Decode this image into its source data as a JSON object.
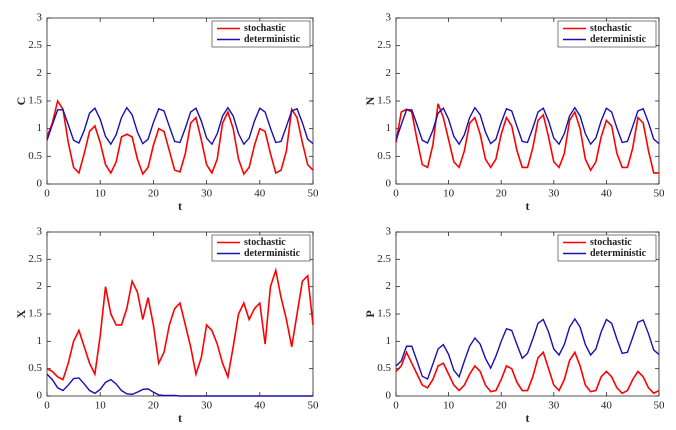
{
  "chart_data": [
    {
      "type": "line",
      "ylabel": "C",
      "xlabel": "t",
      "xlim": [
        0,
        50
      ],
      "ylim": [
        0,
        3
      ],
      "xticks": [
        0,
        10,
        20,
        30,
        40,
        50
      ],
      "yticks": [
        0,
        0.5,
        1,
        1.5,
        2,
        2.5,
        3
      ],
      "legend": "top-right",
      "x": [
        0,
        1,
        2,
        3,
        4,
        5,
        6,
        7,
        8,
        9,
        10,
        11,
        12,
        13,
        14,
        15,
        16,
        17,
        18,
        19,
        20,
        21,
        22,
        23,
        24,
        25,
        26,
        27,
        28,
        29,
        30,
        31,
        32,
        33,
        34,
        35,
        36,
        37,
        38,
        39,
        40,
        41,
        42,
        43,
        44,
        45,
        46,
        47,
        48,
        49,
        50
      ],
      "series": [
        {
          "name": "stochastic",
          "color": "#ff0000",
          "values": [
            0.85,
            1.1,
            1.5,
            1.35,
            0.75,
            0.3,
            0.2,
            0.55,
            0.95,
            1.05,
            0.75,
            0.35,
            0.2,
            0.4,
            0.85,
            0.9,
            0.85,
            0.45,
            0.18,
            0.3,
            0.7,
            1.0,
            0.95,
            0.6,
            0.25,
            0.22,
            0.55,
            1.1,
            1.2,
            0.8,
            0.35,
            0.2,
            0.45,
            1.1,
            1.3,
            1.0,
            0.45,
            0.18,
            0.3,
            0.7,
            1.0,
            0.95,
            0.55,
            0.2,
            0.25,
            0.6,
            1.35,
            1.2,
            0.75,
            0.35,
            0.25
          ]
        },
        {
          "name": "deterministic",
          "color": "#1a0fb0",
          "values": [
            0.79,
            1.07,
            1.34,
            1.34,
            1.07,
            0.79,
            0.74,
            0.97,
            1.28,
            1.37,
            1.17,
            0.86,
            0.72,
            0.89,
            1.2,
            1.38,
            1.25,
            0.94,
            0.73,
            0.81,
            1.11,
            1.36,
            1.32,
            1.04,
            0.77,
            0.75,
            1.01,
            1.3,
            1.37,
            1.14,
            0.83,
            0.72,
            0.91,
            1.23,
            1.38,
            1.23,
            0.91,
            0.72,
            0.83,
            1.14,
            1.37,
            1.3,
            1.01,
            0.75,
            0.77,
            1.04,
            1.32,
            1.36,
            1.11,
            0.81,
            0.73
          ]
        }
      ]
    },
    {
      "type": "line",
      "ylabel": "N",
      "xlabel": "t",
      "xlim": [
        0,
        50
      ],
      "ylim": [
        0,
        3
      ],
      "xticks": [
        0,
        10,
        20,
        30,
        40,
        50
      ],
      "yticks": [
        0,
        0.5,
        1,
        1.5,
        2,
        2.5,
        3
      ],
      "legend": "top-right",
      "x": [
        0,
        1,
        2,
        3,
        4,
        5,
        6,
        7,
        8,
        9,
        10,
        11,
        12,
        13,
        14,
        15,
        16,
        17,
        18,
        19,
        20,
        21,
        22,
        23,
        24,
        25,
        26,
        27,
        28,
        29,
        30,
        31,
        32,
        33,
        34,
        35,
        36,
        37,
        38,
        39,
        40,
        41,
        42,
        43,
        44,
        45,
        46,
        47,
        48,
        49,
        50
      ],
      "series": [
        {
          "name": "stochastic",
          "color": "#ff0000",
          "values": [
            0.75,
            1.3,
            1.35,
            1.3,
            0.8,
            0.35,
            0.3,
            0.7,
            1.45,
            1.2,
            0.8,
            0.4,
            0.3,
            0.6,
            1.1,
            1.2,
            0.9,
            0.45,
            0.3,
            0.45,
            0.9,
            1.2,
            1.05,
            0.6,
            0.3,
            0.3,
            0.65,
            1.15,
            1.25,
            0.85,
            0.4,
            0.3,
            0.55,
            1.15,
            1.3,
            1.0,
            0.45,
            0.25,
            0.4,
            0.85,
            1.15,
            1.05,
            0.55,
            0.3,
            0.3,
            0.65,
            1.2,
            1.1,
            0.6,
            0.2,
            0.2
          ]
        },
        {
          "name": "deterministic",
          "color": "#1a0fb0",
          "values": [
            0.79,
            1.07,
            1.34,
            1.34,
            1.07,
            0.79,
            0.74,
            0.97,
            1.28,
            1.37,
            1.17,
            0.86,
            0.72,
            0.89,
            1.2,
            1.38,
            1.25,
            0.94,
            0.73,
            0.81,
            1.11,
            1.36,
            1.32,
            1.04,
            0.77,
            0.75,
            1.01,
            1.3,
            1.37,
            1.14,
            0.83,
            0.72,
            0.91,
            1.23,
            1.38,
            1.23,
            0.91,
            0.72,
            0.83,
            1.14,
            1.37,
            1.3,
            1.01,
            0.75,
            0.77,
            1.04,
            1.32,
            1.36,
            1.11,
            0.81,
            0.73
          ]
        }
      ]
    },
    {
      "type": "line",
      "ylabel": "X",
      "xlabel": "t",
      "xlim": [
        0,
        50
      ],
      "ylim": [
        0,
        3
      ],
      "xticks": [
        0,
        10,
        20,
        30,
        40,
        50
      ],
      "yticks": [
        0,
        0.5,
        1,
        1.5,
        2,
        2.5,
        3
      ],
      "legend": "top-right",
      "x": [
        0,
        1,
        2,
        3,
        4,
        5,
        6,
        7,
        8,
        9,
        10,
        11,
        12,
        13,
        14,
        15,
        16,
        17,
        18,
        19,
        20,
        21,
        22,
        23,
        24,
        25,
        26,
        27,
        28,
        29,
        30,
        31,
        32,
        33,
        34,
        35,
        36,
        37,
        38,
        39,
        40,
        41,
        42,
        43,
        44,
        45,
        46,
        47,
        48,
        49,
        50
      ],
      "series": [
        {
          "name": "stochastic",
          "color": "#ff0000",
          "values": [
            0.5,
            0.45,
            0.35,
            0.3,
            0.6,
            1.0,
            1.2,
            0.9,
            0.6,
            0.4,
            1.1,
            2.0,
            1.5,
            1.3,
            1.3,
            1.6,
            2.1,
            1.9,
            1.4,
            1.8,
            1.3,
            0.6,
            0.8,
            1.3,
            1.6,
            1.7,
            1.3,
            0.9,
            0.4,
            0.7,
            1.3,
            1.2,
            0.95,
            0.6,
            0.35,
            0.9,
            1.5,
            1.7,
            1.4,
            1.6,
            1.7,
            0.95,
            2.0,
            2.3,
            1.8,
            1.4,
            0.9,
            1.5,
            2.1,
            2.2,
            1.3
          ]
        },
        {
          "name": "deterministic",
          "color": "#1a0fb0",
          "values": [
            0.4,
            0.3,
            0.15,
            0.1,
            0.2,
            0.32,
            0.33,
            0.22,
            0.1,
            0.05,
            0.12,
            0.25,
            0.3,
            0.22,
            0.1,
            0.04,
            0.03,
            0.07,
            0.12,
            0.13,
            0.07,
            0.02,
            0.01,
            0.01,
            0.01,
            0,
            0,
            0,
            0,
            0,
            0,
            0,
            0,
            0,
            0,
            0,
            0,
            0,
            0,
            0,
            0,
            0,
            0,
            0,
            0,
            0,
            0,
            0,
            0,
            0,
            0
          ]
        }
      ]
    },
    {
      "type": "line",
      "ylabel": "P",
      "xlabel": "t",
      "xlim": [
        0,
        50
      ],
      "ylim": [
        0,
        3
      ],
      "xticks": [
        0,
        10,
        20,
        30,
        40,
        50
      ],
      "yticks": [
        0,
        0.5,
        1,
        1.5,
        2,
        2.5,
        3
      ],
      "legend": "top-right",
      "x": [
        0,
        1,
        2,
        3,
        4,
        5,
        6,
        7,
        8,
        9,
        10,
        11,
        12,
        13,
        14,
        15,
        16,
        17,
        18,
        19,
        20,
        21,
        22,
        23,
        24,
        25,
        26,
        27,
        28,
        29,
        30,
        31,
        32,
        33,
        34,
        35,
        36,
        37,
        38,
        39,
        40,
        41,
        42,
        43,
        44,
        45,
        46,
        47,
        48,
        49,
        50
      ],
      "series": [
        {
          "name": "stochastic",
          "color": "#ff0000",
          "values": [
            0.45,
            0.55,
            0.8,
            0.6,
            0.4,
            0.2,
            0.15,
            0.3,
            0.55,
            0.6,
            0.4,
            0.2,
            0.1,
            0.2,
            0.4,
            0.55,
            0.45,
            0.2,
            0.08,
            0.1,
            0.3,
            0.55,
            0.5,
            0.25,
            0.1,
            0.1,
            0.35,
            0.7,
            0.8,
            0.5,
            0.2,
            0.1,
            0.3,
            0.65,
            0.8,
            0.55,
            0.2,
            0.08,
            0.1,
            0.35,
            0.45,
            0.35,
            0.15,
            0.05,
            0.1,
            0.3,
            0.45,
            0.35,
            0.15,
            0.05,
            0.1
          ]
        },
        {
          "name": "deterministic",
          "color": "#1a0fb0",
          "values": [
            0.55,
            0.64,
            0.91,
            0.91,
            0.64,
            0.36,
            0.31,
            0.58,
            0.86,
            0.94,
            0.76,
            0.47,
            0.35,
            0.64,
            0.91,
            1.06,
            0.95,
            0.69,
            0.51,
            0.73,
            1.0,
            1.23,
            1.2,
            0.94,
            0.69,
            0.78,
            1.04,
            1.33,
            1.4,
            1.17,
            0.86,
            0.75,
            0.94,
            1.26,
            1.41,
            1.26,
            0.94,
            0.75,
            0.86,
            1.17,
            1.4,
            1.33,
            1.04,
            0.78,
            0.8,
            1.07,
            1.35,
            1.39,
            1.14,
            0.84,
            0.76
          ]
        }
      ]
    }
  ]
}
